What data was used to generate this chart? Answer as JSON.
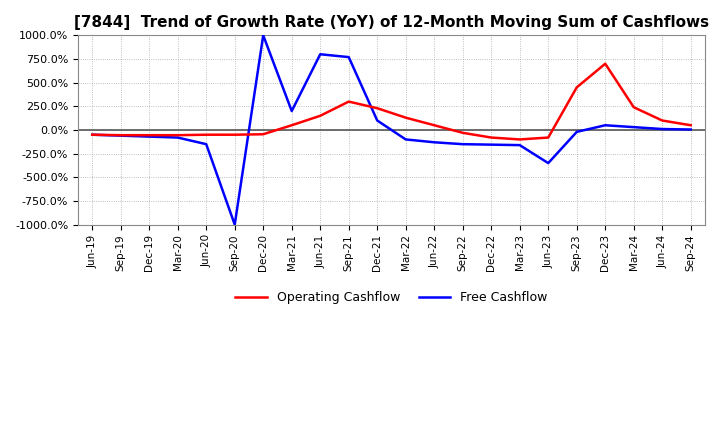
{
  "title": "[7844]  Trend of Growth Rate (YoY) of 12-Month Moving Sum of Cashflows",
  "title_fontsize": 11,
  "ylim": [
    -1000,
    1000
  ],
  "yticks": [
    -1000,
    -750,
    -500,
    -250,
    0,
    250,
    500,
    750,
    1000
  ],
  "yticklabels": [
    "-1000.0%",
    "-750.0%",
    "-500.0%",
    "-250.0%",
    "0.0%",
    "250.0%",
    "500.0%",
    "750.0%",
    "1000.0%"
  ],
  "x_labels": [
    "Jun-19",
    "Sep-19",
    "Dec-19",
    "Mar-20",
    "Jun-20",
    "Sep-20",
    "Dec-20",
    "Mar-21",
    "Jun-21",
    "Sep-21",
    "Dec-21",
    "Mar-22",
    "Jun-22",
    "Sep-22",
    "Dec-22",
    "Mar-23",
    "Jun-23",
    "Sep-23",
    "Dec-23",
    "Mar-24",
    "Jun-24",
    "Sep-24"
  ],
  "operating_cashflow": [
    -50,
    -55,
    -55,
    -55,
    -50,
    -50,
    -45,
    50,
    150,
    300,
    230,
    130,
    50,
    -30,
    -80,
    -100,
    -80,
    450,
    700,
    240,
    100,
    50
  ],
  "free_cashflow": [
    -50,
    -60,
    -70,
    -80,
    -150,
    -1000,
    1000,
    200,
    800,
    770,
    100,
    -100,
    -130,
    -150,
    -155,
    -160,
    -350,
    -20,
    50,
    30,
    10,
    5
  ],
  "line_color_operating": "#ff0000",
  "line_color_free": "#0000ff",
  "legend_operating": "Operating Cashflow",
  "legend_free": "Free Cashflow",
  "background_color": "#ffffff",
  "grid_color": "#aaaaaa",
  "grid_style": "dotted",
  "zero_line_color": "#555555",
  "linewidth": 1.8
}
